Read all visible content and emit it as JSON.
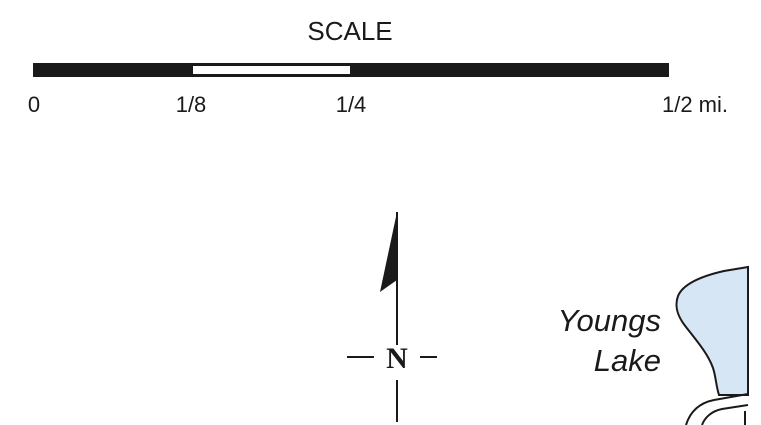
{
  "scale": {
    "title": "SCALE",
    "ticks": [
      "0",
      "1/8",
      "1/4",
      "1/2 mi."
    ]
  },
  "compass": {
    "north_label": "N"
  },
  "features": {
    "lake_name_line1": "Youngs",
    "lake_name_line2": "Lake"
  },
  "colors": {
    "ink": "#1a1a1a",
    "water": "#d6e6f5"
  }
}
